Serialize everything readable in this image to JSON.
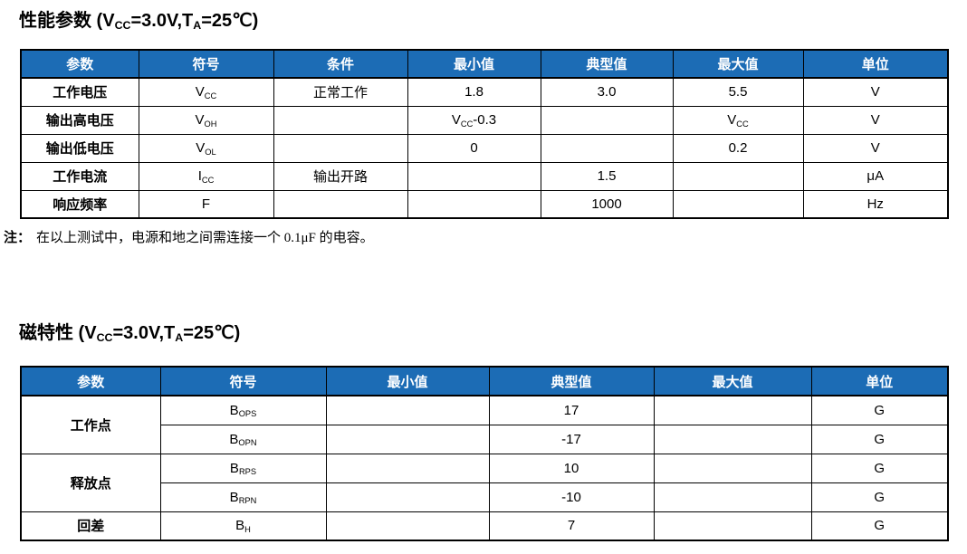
{
  "colors": {
    "header_bg": "#1c6cb5",
    "header_text": "#ffffff",
    "border": "#000000",
    "page_bg": "#ffffff"
  },
  "section_performance": {
    "title": [
      [
        "t",
        "性能参数 (V"
      ],
      [
        "sub",
        "CC"
      ],
      [
        "t",
        "=3.0V,T"
      ],
      [
        "sub",
        "A"
      ],
      [
        "t",
        "=25℃)"
      ]
    ],
    "headers": [
      "参数",
      "符号",
      "条件",
      "最小值",
      "典型值",
      "最大值",
      "单位"
    ],
    "rows": [
      {
        "param": "工作电压",
        "symbol": [
          [
            "t",
            "V"
          ],
          [
            "sub",
            "CC"
          ]
        ],
        "condition": "正常工作",
        "min": "1.8",
        "typ": "3.0",
        "max": "5.5",
        "unit": "V"
      },
      {
        "param": "输出高电压",
        "symbol": [
          [
            "t",
            "V"
          ],
          [
            "sub",
            "OH"
          ]
        ],
        "condition": "",
        "min": [
          [
            "t",
            "V"
          ],
          [
            "sub",
            "CC"
          ],
          [
            "t",
            "-0.3"
          ]
        ],
        "typ": "",
        "max": [
          [
            "t",
            "V"
          ],
          [
            "sub",
            "CC"
          ]
        ],
        "unit": "V"
      },
      {
        "param": "输出低电压",
        "symbol": [
          [
            "t",
            "V"
          ],
          [
            "sub",
            "OL"
          ]
        ],
        "condition": "",
        "min": "0",
        "typ": "",
        "max": "0.2",
        "unit": "V"
      },
      {
        "param": "工作电流",
        "symbol": [
          [
            "t",
            "I"
          ],
          [
            "sub",
            "CC"
          ]
        ],
        "condition": "输出开路",
        "min": "",
        "typ": "1.5",
        "max": "",
        "unit": "μA"
      },
      {
        "param": "响应频率",
        "symbol": [
          [
            "t",
            "F"
          ]
        ],
        "condition": "",
        "min": "",
        "typ": "1000",
        "max": "",
        "unit": "Hz"
      }
    ],
    "note": {
      "label": "注：",
      "text": "在以上测试中，电源和地之间需连接一个 0.1μF 的电容。"
    }
  },
  "section_magnetic": {
    "title": [
      [
        "t",
        "磁特性 (V"
      ],
      [
        "sub",
        "CC"
      ],
      [
        "t",
        "=3.0V,T"
      ],
      [
        "sub",
        "A"
      ],
      [
        "t",
        "=25℃)"
      ]
    ],
    "headers": [
      "参数",
      "符号",
      "最小值",
      "典型值",
      "最大值",
      "单位"
    ],
    "groups": [
      {
        "param": "工作点",
        "rows": [
          {
            "symbol": [
              [
                "t",
                "B"
              ],
              [
                "sub",
                "OPS"
              ]
            ],
            "min": "",
            "typ": "17",
            "max": "",
            "unit": "G"
          },
          {
            "symbol": [
              [
                "t",
                "B"
              ],
              [
                "sub",
                "OPN"
              ]
            ],
            "min": "",
            "typ": "-17",
            "max": "",
            "unit": "G"
          }
        ]
      },
      {
        "param": "释放点",
        "rows": [
          {
            "symbol": [
              [
                "t",
                "B"
              ],
              [
                "sub",
                "RPS"
              ]
            ],
            "min": "",
            "typ": "10",
            "max": "",
            "unit": "G"
          },
          {
            "symbol": [
              [
                "t",
                "B"
              ],
              [
                "sub",
                "RPN"
              ]
            ],
            "min": "",
            "typ": "-10",
            "max": "",
            "unit": "G"
          }
        ]
      },
      {
        "param": "回差",
        "rows": [
          {
            "symbol": [
              [
                "t",
                "B"
              ],
              [
                "sub",
                "H"
              ]
            ],
            "min": "",
            "typ": "7",
            "max": "",
            "unit": "G"
          }
        ]
      }
    ]
  }
}
